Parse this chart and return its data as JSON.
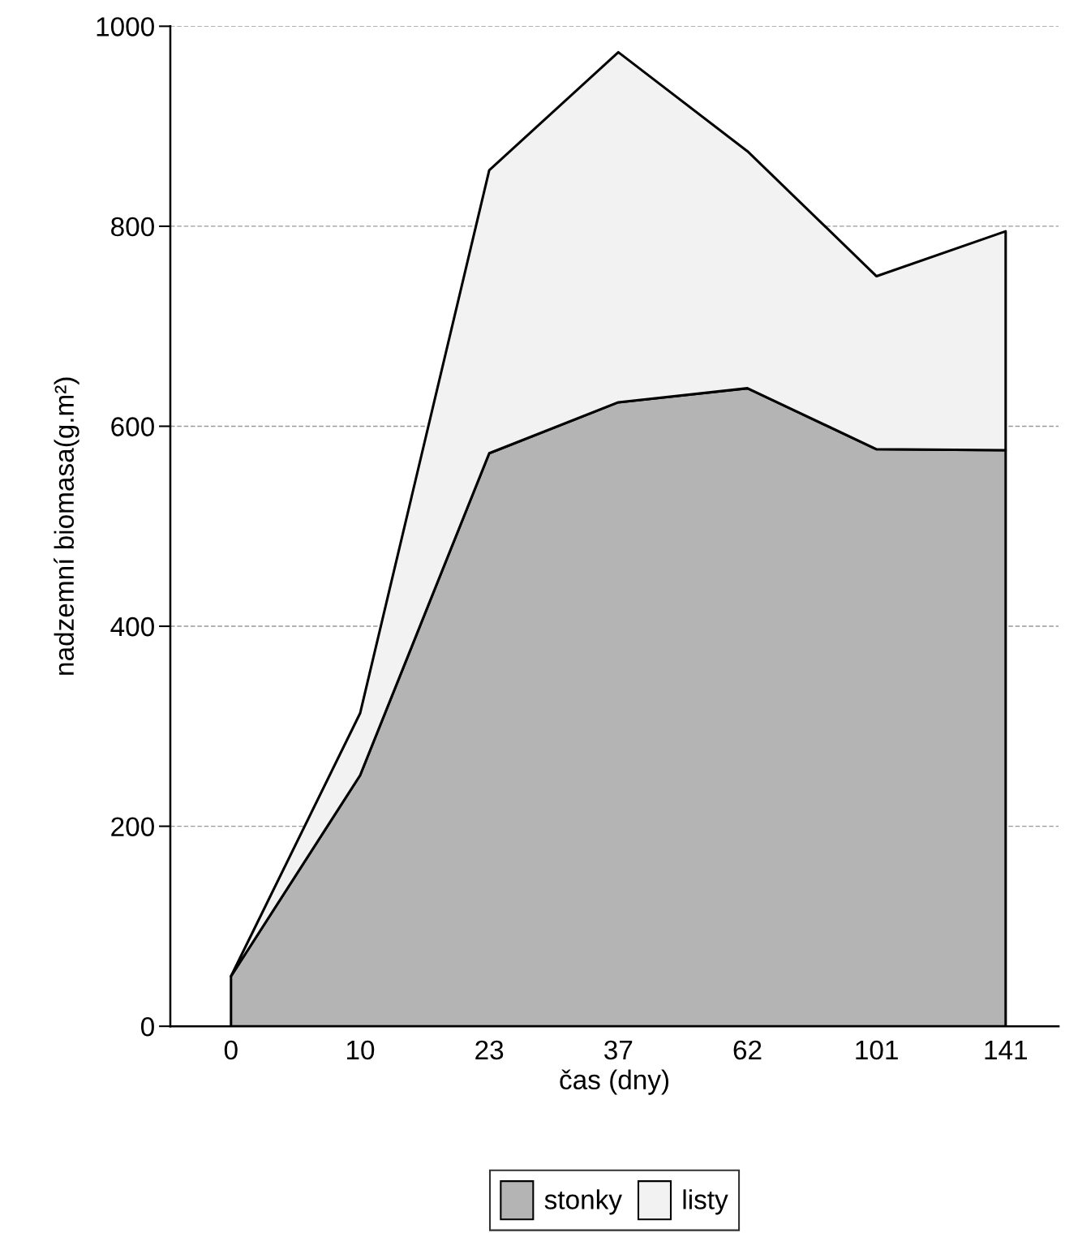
{
  "chart_data": {
    "type": "area",
    "stacked": true,
    "xlabel": "čas (dny)",
    "ylabel": "nadzemní biomasa(g.m²)",
    "categories": [
      "0",
      "10",
      "23",
      "37",
      "62",
      "101",
      "141"
    ],
    "series": [
      {
        "name": "stonky",
        "color": "#b4b4b4",
        "values": [
          50,
          251,
          573,
          624,
          638,
          577,
          576
        ]
      },
      {
        "name": "listy",
        "color": "#f2f2f2",
        "values": [
          0,
          62,
          283,
          350,
          237,
          173,
          219
        ]
      }
    ],
    "ylim": [
      0,
      1000
    ],
    "yticks": [
      0,
      200,
      400,
      600,
      800,
      1000
    ],
    "grid": "y",
    "legend": "bottom"
  }
}
